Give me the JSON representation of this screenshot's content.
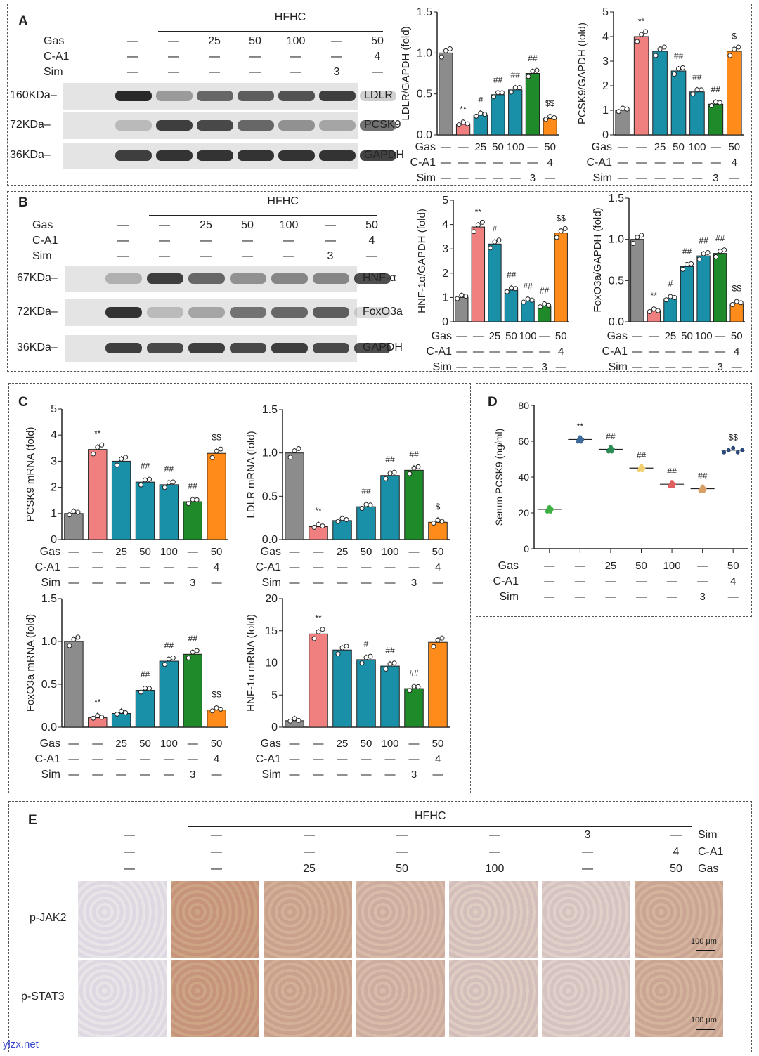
{
  "treatments": {
    "row_labels": [
      "Gas",
      "C-A1",
      "Sim"
    ],
    "gas": [
      "—",
      "—",
      "25",
      "50",
      "100",
      "—",
      "50"
    ],
    "ca1": [
      "—",
      "—",
      "—",
      "—",
      "—",
      "—",
      "4"
    ],
    "sim": [
      "—",
      "—",
      "—",
      "—",
      "—",
      "3",
      "—"
    ]
  },
  "panels": {
    "A": "A",
    "B": "B",
    "C": "C",
    "D": "D",
    "E": "E"
  },
  "hfhc": "HFHC",
  "blot_A": {
    "markers": [
      "160KDa",
      "72KDa",
      "36KDa"
    ],
    "proteins": [
      "LDLR",
      "PCSK9",
      "GAPDH"
    ],
    "intensity": [
      [
        0.9,
        0.35,
        0.6,
        0.65,
        0.7,
        0.8,
        0.2
      ],
      [
        0.2,
        0.8,
        0.75,
        0.6,
        0.4,
        0.3,
        0.6
      ],
      [
        0.8,
        0.85,
        0.85,
        0.85,
        0.85,
        0.85,
        0.8
      ]
    ]
  },
  "blot_B": {
    "markers": [
      "67KDa",
      "72KDa",
      "36KDa"
    ],
    "proteins": [
      "HNF-α",
      "FoxO3a",
      "GAPDH"
    ],
    "intensity": [
      [
        0.25,
        0.8,
        0.6,
        0.4,
        0.45,
        0.45,
        0.75
      ],
      [
        0.85,
        0.2,
        0.3,
        0.55,
        0.6,
        0.65,
        0.15
      ],
      [
        0.8,
        0.75,
        0.8,
        0.75,
        0.8,
        0.75,
        0.75
      ]
    ]
  },
  "colors": {
    "gray": "#8c8c8c",
    "pink": "#f08080",
    "teal": "#1a8fa8",
    "green": "#1f8a2a",
    "orange": "#ff8c1a"
  },
  "chart_data": [
    {
      "id": "A1",
      "type": "bar",
      "ylabel": "LDLR/GAPDH (fold)",
      "ylim": [
        0,
        1.5
      ],
      "yticks": [
        "0.0",
        "0.5",
        "1.0",
        "1.5"
      ],
      "values": [
        1.0,
        0.13,
        0.24,
        0.49,
        0.55,
        0.75,
        0.2
      ],
      "annotations": [
        "",
        "**",
        "#",
        "##",
        "##",
        "##",
        "$$"
      ]
    },
    {
      "id": "A2",
      "type": "bar",
      "ylabel": "PCSK9/GAPDH (fold)",
      "ylim": [
        0,
        5
      ],
      "yticks": [
        "0",
        "1",
        "2",
        "3",
        "4",
        "5"
      ],
      "values": [
        1.0,
        4.0,
        3.4,
        2.6,
        1.75,
        1.25,
        3.4
      ],
      "annotations": [
        "",
        "**",
        "",
        "##",
        "##",
        "##",
        "$"
      ]
    },
    {
      "id": "B1",
      "type": "bar",
      "ylabel": "HNF-1α/GAPDH (fold)",
      "ylim": [
        0,
        5
      ],
      "yticks": [
        "0",
        "1",
        "2",
        "3",
        "4",
        "5"
      ],
      "values": [
        1.0,
        3.9,
        3.2,
        1.3,
        0.85,
        0.65,
        3.65
      ],
      "annotations": [
        "",
        "**",
        "#",
        "##",
        "##",
        "##",
        "$$"
      ]
    },
    {
      "id": "B2",
      "type": "bar",
      "ylabel": "FoxO3a/GAPDH (fold)",
      "ylim": [
        0,
        1.5
      ],
      "yticks": [
        "0.0",
        "0.5",
        "1.0",
        "1.5"
      ],
      "values": [
        1.0,
        0.13,
        0.28,
        0.67,
        0.8,
        0.83,
        0.22
      ],
      "annotations": [
        "",
        "**",
        "#",
        "##",
        "##",
        "##",
        "$$"
      ]
    },
    {
      "id": "C1",
      "type": "bar",
      "ylabel": "PCSK9 mRNA (fold)",
      "ylim": [
        0,
        5
      ],
      "yticks": [
        "0",
        "1",
        "2",
        "3",
        "4",
        "5"
      ],
      "values": [
        1.0,
        3.45,
        3.0,
        2.2,
        2.1,
        1.45,
        3.3
      ],
      "annotations": [
        "",
        "**",
        "",
        "##",
        "##",
        "##",
        "$$"
      ]
    },
    {
      "id": "C2",
      "type": "bar",
      "ylabel": "LDLR mRNA (fold)",
      "ylim": [
        0,
        1.5
      ],
      "yticks": [
        "0.0",
        "0.5",
        "1.0",
        "1.5"
      ],
      "values": [
        1.0,
        0.15,
        0.22,
        0.38,
        0.74,
        0.8,
        0.2
      ],
      "annotations": [
        "",
        "**",
        "",
        "##",
        "##",
        "##",
        "$"
      ]
    },
    {
      "id": "C3",
      "type": "bar",
      "ylabel": "FoxO3a mRNA (fold)",
      "ylim": [
        0,
        1.5
      ],
      "yticks": [
        "0.0",
        "0.5",
        "1.0",
        "1.5"
      ],
      "values": [
        1.0,
        0.11,
        0.16,
        0.43,
        0.77,
        0.85,
        0.2
      ],
      "annotations": [
        "",
        "**",
        "",
        "##",
        "##",
        "##",
        "$$"
      ]
    },
    {
      "id": "C4",
      "type": "bar",
      "ylabel": "HNF-1α mRNA (fold)",
      "ylim": [
        0,
        20
      ],
      "yticks": [
        "0",
        "5",
        "10",
        "15",
        "20"
      ],
      "values": [
        1.0,
        14.5,
        12.0,
        10.5,
        9.5,
        6.0,
        13.2
      ],
      "annotations": [
        "",
        "**",
        "",
        "#",
        "##",
        "##",
        ""
      ]
    },
    {
      "id": "D",
      "type": "scatter",
      "ylabel": "Serum PCSK9 (ng/ml)",
      "ylim": [
        0,
        80
      ],
      "yticks": [
        "0",
        "20",
        "40",
        "60",
        "80"
      ],
      "values": [
        22,
        61,
        55.5,
        45,
        36,
        33.5,
        55
      ],
      "annotations": [
        "",
        "**",
        "##",
        "##",
        "##",
        "##",
        "$$"
      ],
      "colors": [
        "#3cb043",
        "#3d6a9a",
        "#2e8b57",
        "#f0d070",
        "#e06060",
        "#d9a066",
        "#2b4a7a"
      ]
    }
  ],
  "panel_E": {
    "rows": [
      "p-JAK2",
      "p-STAT3"
    ],
    "header_labels": [
      "Sim",
      "C-A1",
      "Gas"
    ],
    "sim": [
      "—",
      "—",
      "—",
      "—",
      "—",
      "3",
      "—"
    ],
    "ca1": [
      "—",
      "—",
      "—",
      "—",
      "—",
      "—",
      "4"
    ],
    "gas": [
      "—",
      "—",
      "25",
      "50",
      "100",
      "—",
      "50"
    ],
    "scale_bar": "100 μm",
    "tints": [
      0.05,
      0.85,
      0.7,
      0.55,
      0.35,
      0.3,
      0.65
    ]
  },
  "watermark": "ylzx.net"
}
